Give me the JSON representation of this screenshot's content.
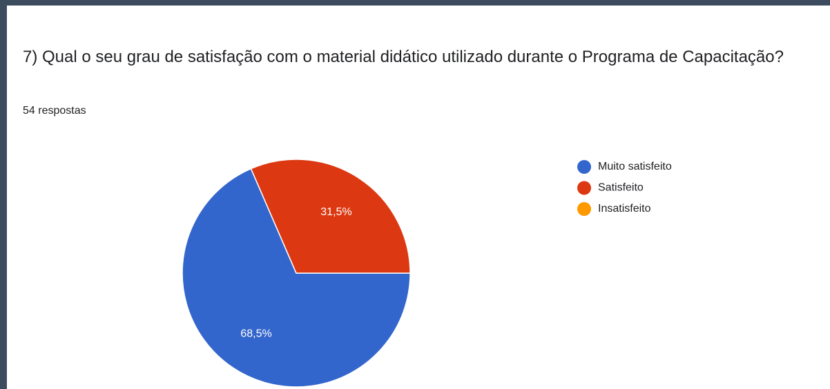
{
  "chart_data": {
    "type": "pie",
    "title": "7) Qual o seu grau de satisfação com o material didático utilizado durante o Programa de Capacitação?",
    "subtitle": "54 respostas",
    "categories": [
      "Muito satisfeito",
      "Satisfeito",
      "Insatisfeito"
    ],
    "values": [
      68.5,
      31.5,
      0
    ],
    "value_labels": [
      "68,5%",
      "31,5%",
      null
    ],
    "colors": [
      "#3366cc",
      "#dc3912",
      "#ff9900"
    ],
    "legend": "right"
  }
}
